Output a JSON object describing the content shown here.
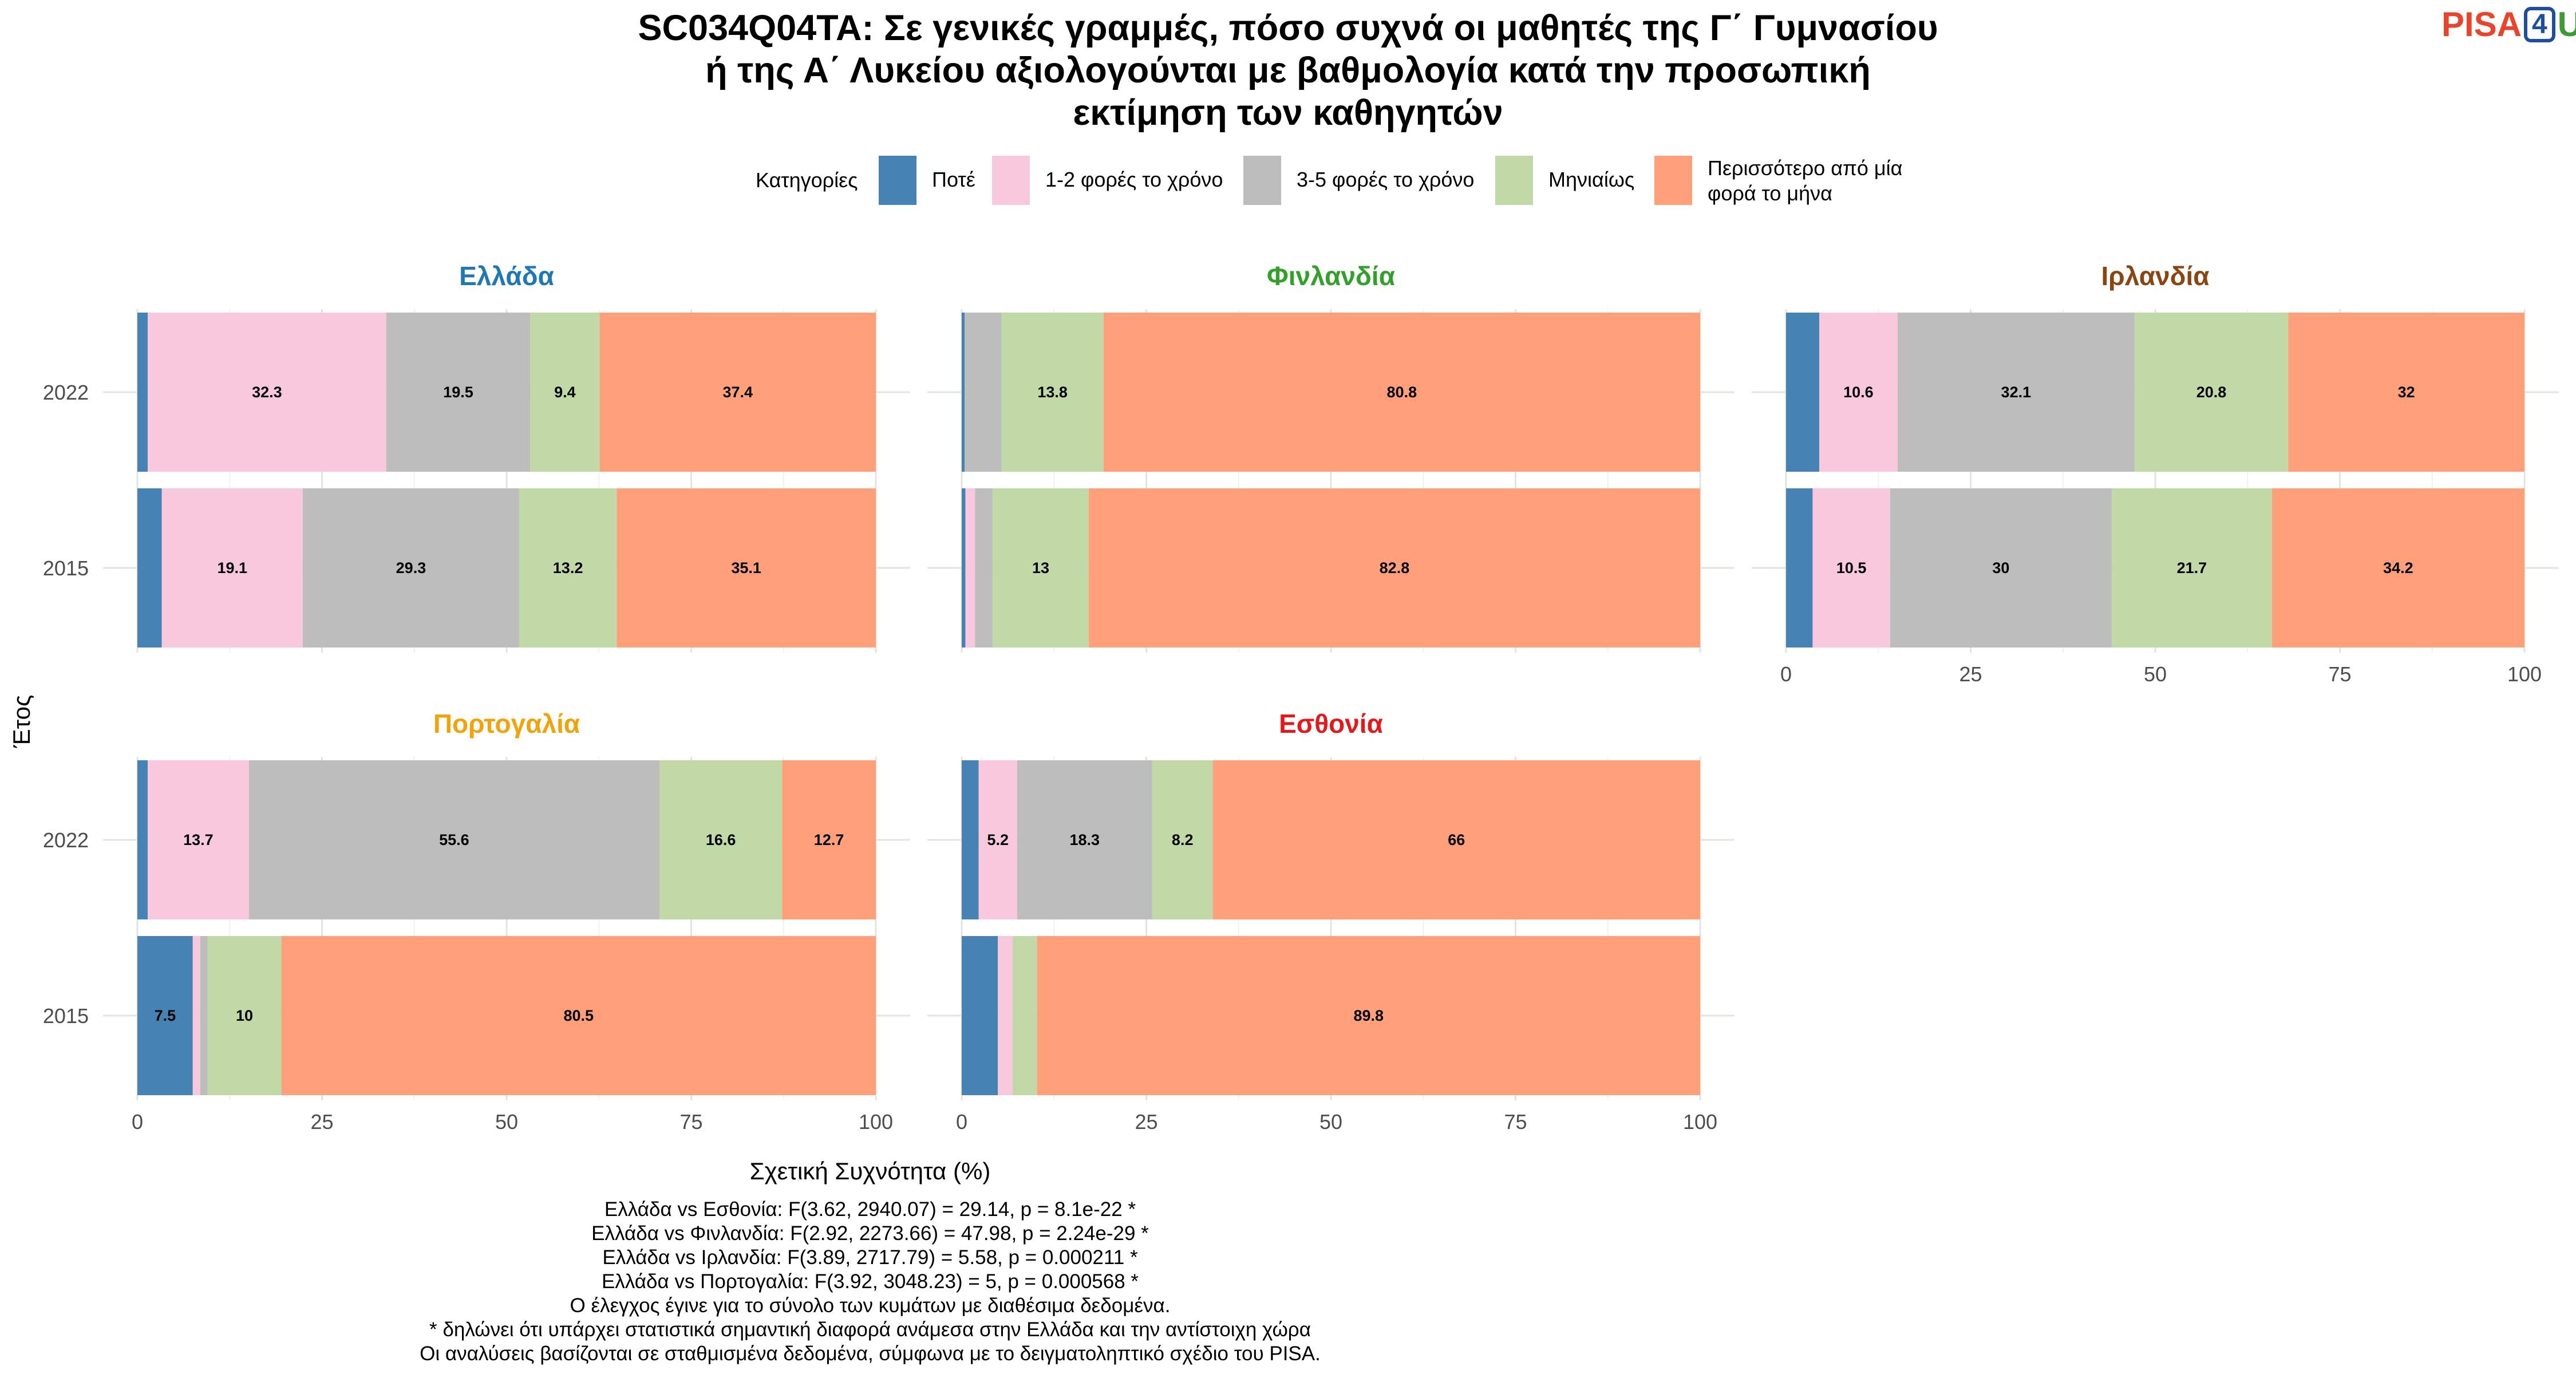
{
  "title_lines": [
    "SC034Q04TA: Σε γενικές γραμμές, πόσο συχνά οι μαθητές της Γ΄ Γυμνασίου",
    "ή της Α΄ Λυκείου αξιολογούνται με βαθμολογία κατά την προσωπική",
    "εκτίμηση των καθηγητών"
  ],
  "logo": {
    "pisa": "PISA",
    "four": "4",
    "u": "U"
  },
  "legend": {
    "title": "Κατηγορίες",
    "items": [
      {
        "label": "Ποτέ",
        "color": "#4682B4"
      },
      {
        "label": "1-2 φορές το χρόνο",
        "color": "#F8C8DC"
      },
      {
        "label": "3-5 φορές το χρόνο",
        "color": "#BDBDBD"
      },
      {
        "label": "Μηνιαίως",
        "color": "#C1D9A6"
      },
      {
        "label": "Περισσότερο από μία φορά το μήνα",
        "label_lines": [
          "Περισσότερο από μία",
          "φορά το μήνα"
        ],
        "color": "#FFA07A"
      }
    ]
  },
  "chart_data": {
    "type": "bar",
    "orientation": "horizontal",
    "stacked": true,
    "xlabel": "Σχετική Συχνότητα (%)",
    "ylabel": "Έτος",
    "xlim": [
      0,
      100
    ],
    "xticks": [
      0,
      25,
      50,
      75,
      100
    ],
    "categories": [
      "2022",
      "2015"
    ],
    "series_names": [
      "Ποτέ",
      "1-2 φορές το χρόνο",
      "3-5 φορές το χρόνο",
      "Μηνιαίως",
      "Περισσότερο από μία φορά το μήνα"
    ],
    "grid": true,
    "legend_position": "top",
    "panels": [
      {
        "name": "Ελλάδα",
        "title_color": "#1F78B4",
        "bars": [
          {
            "year": "2022",
            "values": [
              1.4,
              32.3,
              19.5,
              9.4,
              37.4
            ],
            "labels": [
              "",
              "32.3",
              "19.5",
              "9.4",
              "37.4"
            ]
          },
          {
            "year": "2015",
            "values": [
              3.3,
              19.1,
              29.3,
              13.2,
              35.1
            ],
            "labels": [
              "",
              "19.1",
              "29.3",
              "13.2",
              "35.1"
            ]
          }
        ]
      },
      {
        "name": "Φινλανδία",
        "title_color": "#33A02C",
        "bars": [
          {
            "year": "2022",
            "values": [
              0.4,
              0.0,
              5.0,
              13.8,
              80.8
            ],
            "labels": [
              "",
              "",
              "",
              "13.8",
              "80.8"
            ]
          },
          {
            "year": "2015",
            "values": [
              0.5,
              1.3,
              2.4,
              13.0,
              82.8
            ],
            "labels": [
              "",
              "",
              "",
              "13",
              "82.8"
            ]
          }
        ]
      },
      {
        "name": "Ιρλανδία",
        "title_color": "#8B4513",
        "bars": [
          {
            "year": "2022",
            "values": [
              4.5,
              10.6,
              32.1,
              20.8,
              32.0
            ],
            "labels": [
              "",
              "10.6",
              "32.1",
              "20.8",
              "32"
            ]
          },
          {
            "year": "2015",
            "values": [
              3.6,
              10.5,
              30.0,
              21.7,
              34.2
            ],
            "labels": [
              "",
              "10.5",
              "30",
              "21.7",
              "34.2"
            ]
          }
        ]
      },
      {
        "name": "Πορτογαλία",
        "title_color": "#F0A30A",
        "bars": [
          {
            "year": "2022",
            "values": [
              1.4,
              13.7,
              55.6,
              16.6,
              12.7
            ],
            "labels": [
              "",
              "13.7",
              "55.6",
              "16.6",
              "12.7"
            ]
          },
          {
            "year": "2015",
            "values": [
              7.5,
              1.0,
              1.0,
              10.0,
              80.5
            ],
            "labels": [
              "7.5",
              "",
              "",
              "10",
              "80.5"
            ]
          }
        ]
      },
      {
        "name": "Εσθονία",
        "title_color": "#E31A1C",
        "bars": [
          {
            "year": "2022",
            "values": [
              2.3,
              5.2,
              18.3,
              8.2,
              66.0
            ],
            "labels": [
              "",
              "5.2",
              "18.3",
              "8.2",
              "66"
            ]
          },
          {
            "year": "2015",
            "values": [
              4.9,
              2.0,
              0.0,
              3.3,
              89.8
            ],
            "labels": [
              "",
              "",
              "",
              "",
              "89.8"
            ]
          }
        ]
      }
    ]
  },
  "notes": [
    "Ελλάδα vs Εσθονία: F(3.62, 2940.07) = 29.14, p = 8.1e-22 *",
    "Ελλάδα vs Φινλανδία: F(2.92, 2273.66) = 47.98, p = 2.24e-29 *",
    "Ελλάδα vs Ιρλανδία: F(3.89, 2717.79) = 5.58, p = 0.000211 *",
    "Ελλάδα vs Πορτογαλία: F(3.92, 3048.23) = 5, p = 0.000568 *",
    "Ο έλεγχος έγινε για το σύνολο των κυμάτων με διαθέσιμα δεδομένα.",
    "* δηλώνει ότι υπάρχει στατιστικά σημαντική διαφορά ανάμεσα στην Ελλάδα και την αντίστοιχη χώρα",
    "Οι αναλύσεις βασίζονται σε σταθμισμένα δεδομένα, σύμφωνα με το δειγματοληπτικό σχέδιο του PISA."
  ]
}
